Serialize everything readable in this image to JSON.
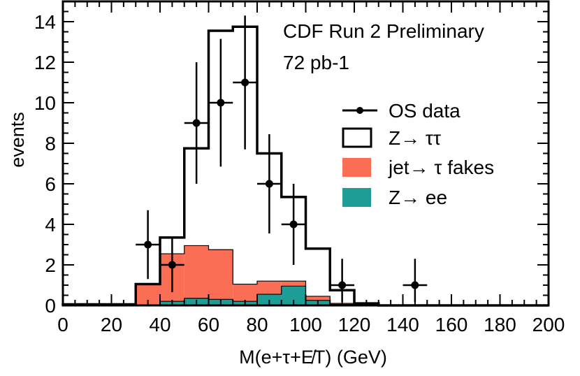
{
  "chart_data": {
    "type": "bar",
    "title": "CDF Run 2 Preliminary",
    "subtitle": "72 pb-1",
    "xlabel": "M(e+τ+E̸T)  (GeV)",
    "ylabel": "events",
    "xlim": [
      0,
      200
    ],
    "ylim": [
      0,
      15
    ],
    "x_ticks": [
      0,
      20,
      40,
      60,
      80,
      100,
      120,
      140,
      160,
      180,
      200
    ],
    "y_ticks": [
      0,
      2,
      4,
      6,
      8,
      10,
      12,
      14
    ],
    "bin_edges": [
      0,
      10,
      20,
      30,
      40,
      50,
      60,
      70,
      80,
      90,
      100,
      110,
      120,
      130,
      140,
      150,
      160,
      170,
      180,
      190,
      200
    ],
    "series": [
      {
        "name": "Z→ ττ",
        "kind": "total-outline",
        "color": "#000000",
        "values": [
          0.05,
          0.05,
          0.05,
          1.05,
          3.35,
          7.75,
          13.55,
          13.75,
          7.5,
          5.35,
          2.8,
          0.75,
          0.1,
          0,
          0,
          0,
          0,
          0,
          0,
          0
        ]
      },
      {
        "name": "jet→ τ fakes",
        "kind": "filled",
        "color": "#FA6E55",
        "values": [
          0.05,
          0.05,
          0.05,
          1.05,
          2.55,
          2.95,
          2.75,
          1.05,
          1.2,
          1.2,
          0.45,
          0.1,
          0,
          0,
          0,
          0,
          0,
          0,
          0,
          0
        ]
      },
      {
        "name": "Z→ ee",
        "kind": "filled",
        "color": "#1E9C96",
        "values": [
          0,
          0,
          0,
          0,
          0.2,
          0.35,
          0.3,
          0.2,
          0.55,
          0.95,
          0.25,
          0.05,
          0,
          0,
          0,
          0,
          0,
          0,
          0,
          0
        ]
      },
      {
        "name": "OS data",
        "kind": "points",
        "color": "#000000",
        "points": [
          {
            "x": 35,
            "y": 3,
            "ylo": 1.3,
            "yhi": 4.7
          },
          {
            "x": 45,
            "y": 2,
            "ylo": 0.65,
            "yhi": 3.35
          },
          {
            "x": 55,
            "y": 9,
            "ylo": 6.0,
            "yhi": 12.0
          },
          {
            "x": 65,
            "y": 10,
            "ylo": 6.85,
            "yhi": 13.15
          },
          {
            "x": 75,
            "y": 11,
            "ylo": 7.7,
            "yhi": 14.3
          },
          {
            "x": 85,
            "y": 6,
            "ylo": 3.55,
            "yhi": 8.45
          },
          {
            "x": 95,
            "y": 4,
            "ylo": 2.0,
            "yhi": 6.0
          },
          {
            "x": 115,
            "y": 1,
            "ylo": 0.17,
            "yhi": 2.3
          },
          {
            "x": 145,
            "y": 1,
            "ylo": 0.17,
            "yhi": 2.3
          }
        ]
      }
    ],
    "legend": [
      {
        "label": "OS data",
        "symbol": "point"
      },
      {
        "label": "Z→ ττ",
        "symbol": "outline"
      },
      {
        "label": "jet→ τ fakes",
        "symbol": "fill-red"
      },
      {
        "label": "Z→ ee",
        "symbol": "fill-teal"
      }
    ],
    "legend_position": "right",
    "grid": false
  }
}
